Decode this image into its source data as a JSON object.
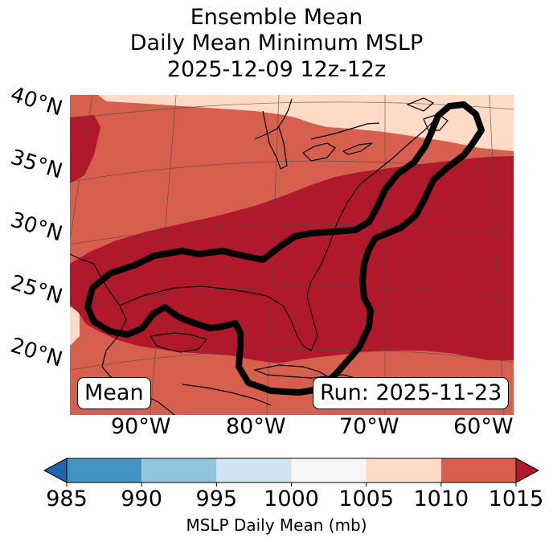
{
  "title": {
    "line1": "Ensemble Mean",
    "line2": "Daily Mean Minimum MSLP",
    "line3": "2025-12-09 12z-12z"
  },
  "map": {
    "lat_labels": [
      "40°N",
      "35°N",
      "30°N",
      "25°N",
      "20°N"
    ],
    "lon_labels": [
      "90°W",
      "80°W",
      "70°W",
      "60°W"
    ],
    "mean_label": "Mean",
    "run_label": "Run: 2025-11-23"
  },
  "colorbar": {
    "ticks": [
      "985",
      "990",
      "995",
      "1000",
      "1005",
      "1010",
      "1015"
    ],
    "label": "MSLP Daily Mean (mb)",
    "colors": [
      "#2166ac",
      "#4393c3",
      "#92c5de",
      "#d1e5f0",
      "#f7f7f7",
      "#fddbc7",
      "#d6604d",
      "#b2182b"
    ]
  }
}
